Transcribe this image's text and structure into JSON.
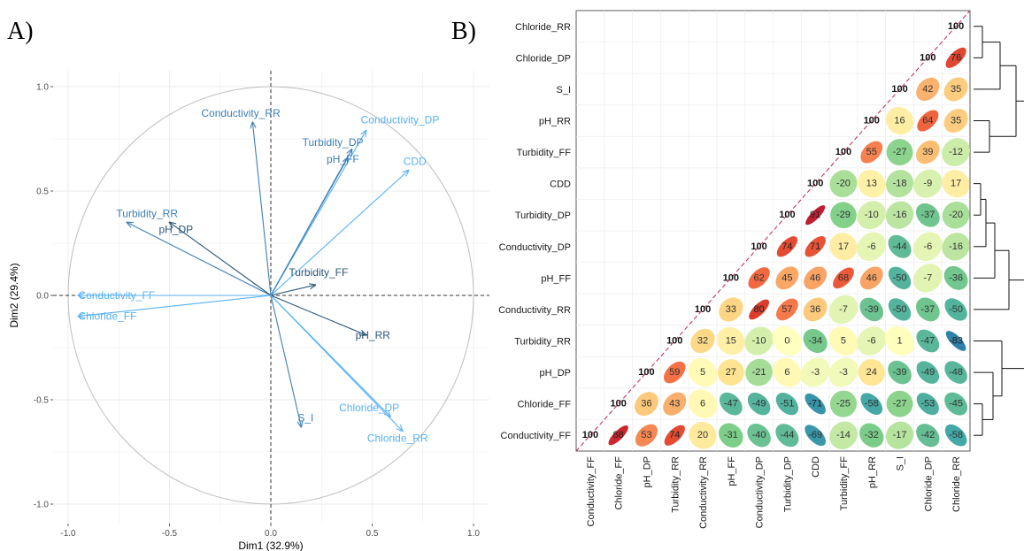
{
  "panels": {
    "a": "A)",
    "b": "B)"
  },
  "chart_data": [
    {
      "type": "scatter",
      "subtype": "pca-variable-correlation-circle",
      "xlabel": "Dim1 (32.9%)",
      "ylabel": "Dim2 (29.4%)",
      "xlim": [
        -1.05,
        1.05
      ],
      "ylim": [
        -1.05,
        1.05
      ],
      "x_ticks": [
        "-1.0",
        "-0.5",
        "0.0",
        "0.5",
        "1.0"
      ],
      "y_ticks": [
        "-1.0",
        "-0.5",
        "0.0",
        "0.5",
        "1.0"
      ],
      "grid": true,
      "unit_circle": true,
      "colors": {
        "light": "#56b1f7",
        "mid": "#3d7fb5",
        "dark": "#2b5777",
        "axis": "#333333",
        "circle": "#bdbdbd"
      },
      "vectors": [
        {
          "name": "Conductivity_RR",
          "x": -0.09,
          "y": 0.83,
          "shade": "mid"
        },
        {
          "name": "Conductivity_DP",
          "x": 0.47,
          "y": 0.79,
          "shade": "light"
        },
        {
          "name": "Turbidity_DP",
          "x": 0.4,
          "y": 0.7,
          "shade": "mid"
        },
        {
          "name": "pH_FF",
          "x": 0.38,
          "y": 0.66,
          "shade": "mid"
        },
        {
          "name": "CDD",
          "x": 0.68,
          "y": 0.6,
          "shade": "light"
        },
        {
          "name": "Turbidity_RR",
          "x": -0.71,
          "y": 0.35,
          "shade": "mid"
        },
        {
          "name": "pH_DP",
          "x": -0.5,
          "y": 0.35,
          "shade": "dark"
        },
        {
          "name": "Conductivity_FF",
          "x": -0.95,
          "y": 0.0,
          "shade": "light"
        },
        {
          "name": "Chloride_FF",
          "x": -0.95,
          "y": -0.1,
          "shade": "light"
        },
        {
          "name": "Turbidity_FF",
          "x": 0.22,
          "y": 0.05,
          "shade": "dark"
        },
        {
          "name": "pH_RR",
          "x": 0.47,
          "y": -0.19,
          "shade": "dark"
        },
        {
          "name": "S_I",
          "x": 0.15,
          "y": -0.63,
          "shade": "mid"
        },
        {
          "name": "Chloride_DP",
          "x": 0.59,
          "y": -0.58,
          "shade": "light"
        },
        {
          "name": "Chloride_RR",
          "x": 0.65,
          "y": -0.65,
          "shade": "light"
        }
      ]
    },
    {
      "type": "heatmap",
      "subtype": "correlation-matrix-lower-triangle",
      "value_scale": 100,
      "variables": [
        "Conductivity_FF",
        "Chloride_FF",
        "pH_DP",
        "Turbidity_RR",
        "Conductivity_RR",
        "pH_FF",
        "Conductivity_DP",
        "Turbidity_DP",
        "CDD",
        "Turbidity_FF",
        "pH_RR",
        "S_I",
        "Chloride_DP",
        "Chloride_RR"
      ],
      "rows_top_to_bottom": [
        "Chloride_RR",
        "Chloride_DP",
        "S_I",
        "pH_RR",
        "Turbidity_FF",
        "CDD",
        "Turbidity_DP",
        "Conductivity_DP",
        "pH_FF",
        "Conductivity_RR",
        "Turbidity_RR",
        "pH_DP",
        "Chloride_FF",
        "Conductivity_FF"
      ],
      "values": [
        [
          100
        ],
        [
          100,
          76
        ],
        [
          100,
          42,
          35
        ],
        [
          100,
          16,
          64,
          35
        ],
        [
          100,
          55,
          -27,
          39,
          -12
        ],
        [
          100,
          -20,
          13,
          -18,
          -9,
          17
        ],
        [
          100,
          91,
          -29,
          -10,
          -16,
          -37,
          -20
        ],
        [
          100,
          74,
          71,
          17,
          -6,
          -44,
          -6,
          -16
        ],
        [
          100,
          62,
          45,
          46,
          68,
          46,
          -50,
          -7,
          -36
        ],
        [
          100,
          33,
          80,
          57,
          36,
          -7,
          -39,
          -50,
          -37,
          -50
        ],
        [
          100,
          32,
          15,
          -10,
          0,
          -34,
          5,
          -6,
          1,
          -47,
          -83
        ],
        [
          100,
          59,
          5,
          27,
          -21,
          6,
          -3,
          -3,
          24,
          -39,
          -49,
          -48
        ],
        [
          100,
          36,
          43,
          6,
          -47,
          -49,
          -51,
          -71,
          -25,
          -58,
          -27,
          -53,
          -45
        ],
        [
          100,
          88,
          53,
          74,
          20,
          -31,
          -40,
          -44,
          -69,
          -14,
          -32,
          -17,
          -42,
          -58
        ]
      ],
      "diagonal_line": true,
      "dendrogram_clusters": [
        [
          "Chloride_RR",
          "Chloride_DP",
          "S_I",
          "pH_RR",
          "Turbidity_FF"
        ],
        [
          "CDD",
          "Turbidity_DP",
          "Conductivity_DP",
          "pH_FF",
          "Conductivity_RR"
        ],
        [
          "Turbidity_RR",
          "pH_DP",
          "Chloride_FF",
          "Conductivity_FF"
        ]
      ],
      "colors": {
        "neg_strong": "#2166ac",
        "neg_mid": "#3fa5a8",
        "neg_light": "#7fcf87",
        "neutral": "#ffffbf",
        "pos_light": "#fee08b",
        "pos_mid": "#f46d43",
        "pos_strong": "#d73027",
        "perfect": "#9e0142",
        "diag_line": "#c0254a"
      }
    }
  ]
}
